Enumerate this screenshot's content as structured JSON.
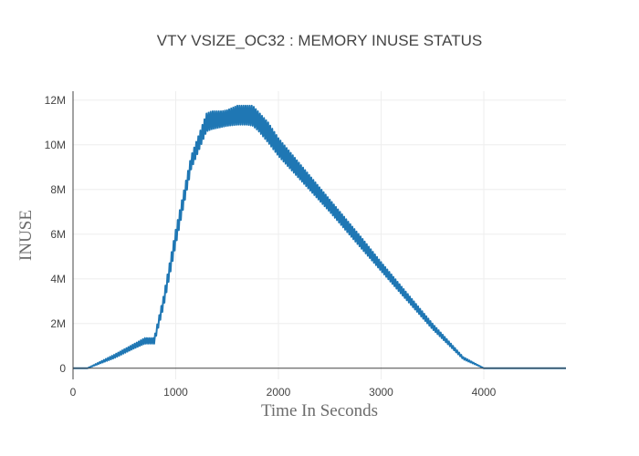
{
  "chart_data": {
    "type": "line",
    "title": "VTY VSIZE_OC32 : MEMORY INUSE STATUS",
    "xlabel": "Time In Seconds",
    "ylabel": "INUSE",
    "xlim": [
      0,
      4800
    ],
    "ylim": [
      -500000,
      12400000
    ],
    "grid": true,
    "x_ticks": [
      0,
      1000,
      2000,
      3000,
      4000
    ],
    "x_tick_labels": [
      "0",
      "1000",
      "2000",
      "3000",
      "4000"
    ],
    "y_ticks": [
      0,
      2000000,
      4000000,
      6000000,
      8000000,
      10000000,
      12000000
    ],
    "y_tick_labels": [
      "0",
      "2M",
      "4M",
      "6M",
      "8M",
      "10M",
      "12M"
    ],
    "colors": {
      "series": "#1f77b4",
      "grid": "#eeeeee",
      "zeroline": "#444444",
      "axis": "#444444"
    },
    "series": [
      {
        "upper": {
          "x": [
            0,
            140,
            400,
            600,
            700,
            790,
            880,
            1000,
            1150,
            1300,
            1350,
            1450,
            1500,
            1600,
            1700,
            1750,
            1800,
            1900,
            2000,
            2200,
            2500,
            2800,
            3000,
            3200,
            3500,
            3800,
            4000,
            4130,
            4500,
            4800
          ],
          "y": [
            0,
            0,
            600000,
            1100000,
            1350000,
            1350000,
            3200000,
            6200000,
            9500000,
            11400000,
            11500000,
            11500000,
            11550000,
            11750000,
            11750000,
            11750000,
            11500000,
            11000000,
            10300000,
            9200000,
            7550000,
            5900000,
            4750000,
            3650000,
            2000000,
            500000,
            0,
            0,
            0,
            0
          ]
        },
        "lower": {
          "x": [
            0,
            140,
            400,
            600,
            700,
            790,
            880,
            1000,
            1150,
            1300,
            1350,
            1450,
            1500,
            1600,
            1700,
            1750,
            1800,
            1900,
            2000,
            2200,
            2500,
            2800,
            3000,
            3200,
            3500,
            3800,
            4000,
            4130,
            4500,
            4800
          ],
          "y": [
            0,
            0,
            450000,
            900000,
            1100000,
            1100000,
            2700000,
            5500000,
            8900000,
            10600000,
            10700000,
            10800000,
            10850000,
            10900000,
            10900000,
            10850000,
            10650000,
            10100000,
            9500000,
            8500000,
            7000000,
            5400000,
            4350000,
            3300000,
            1750000,
            400000,
            0,
            0,
            0,
            0
          ]
        }
      }
    ]
  }
}
